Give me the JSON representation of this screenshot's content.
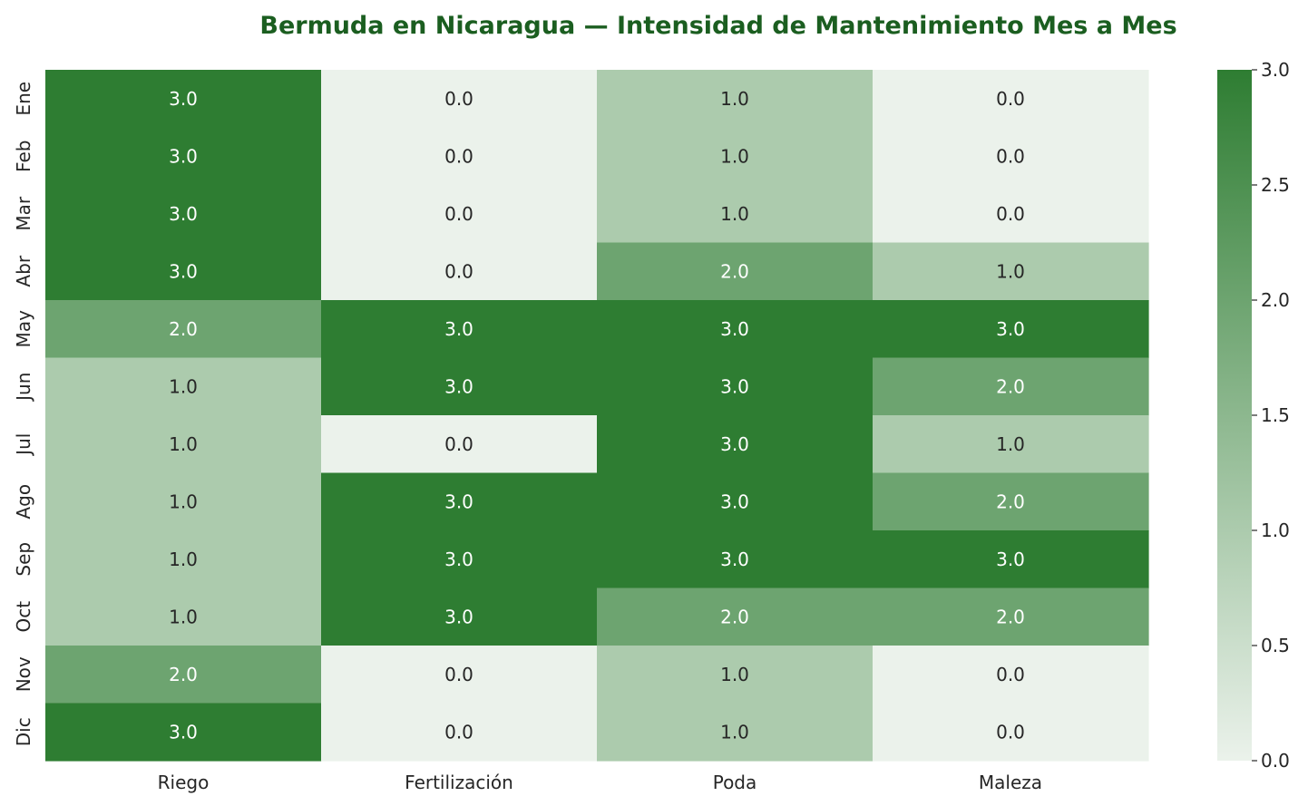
{
  "chart_data": {
    "type": "heatmap",
    "title": "Bermuda en Nicaragua — Intensidad de Mantenimiento Mes a Mes",
    "xlabel": "",
    "ylabel": "",
    "columns": [
      "Riego",
      "Fertilización",
      "Poda",
      "Maleza"
    ],
    "rows": [
      "Ene",
      "Feb",
      "Mar",
      "Abr",
      "May",
      "Jun",
      "Jul",
      "Ago",
      "Sep",
      "Oct",
      "Nov",
      "Dic"
    ],
    "values": [
      [
        3.0,
        0.0,
        1.0,
        0.0
      ],
      [
        3.0,
        0.0,
        1.0,
        0.0
      ],
      [
        3.0,
        0.0,
        1.0,
        0.0
      ],
      [
        3.0,
        0.0,
        2.0,
        1.0
      ],
      [
        2.0,
        3.0,
        3.0,
        3.0
      ],
      [
        1.0,
        3.0,
        3.0,
        2.0
      ],
      [
        1.0,
        0.0,
        3.0,
        1.0
      ],
      [
        1.0,
        3.0,
        3.0,
        2.0
      ],
      [
        1.0,
        3.0,
        3.0,
        3.0
      ],
      [
        1.0,
        3.0,
        2.0,
        2.0
      ],
      [
        2.0,
        0.0,
        1.0,
        0.0
      ],
      [
        3.0,
        0.0,
        1.0,
        0.0
      ]
    ],
    "value_format": "0.0",
    "colorbar": {
      "range": [
        0.0,
        3.0
      ],
      "ticks": [
        "0.0",
        "0.5",
        "1.0",
        "1.5",
        "2.0",
        "2.5",
        "3.0"
      ]
    },
    "colors": {
      "low": "#ebf2eb",
      "high": "#2e7d32",
      "title": "#1b5e20",
      "text_dark": "#262626",
      "text_light": "#ffffff"
    },
    "grid": false
  }
}
